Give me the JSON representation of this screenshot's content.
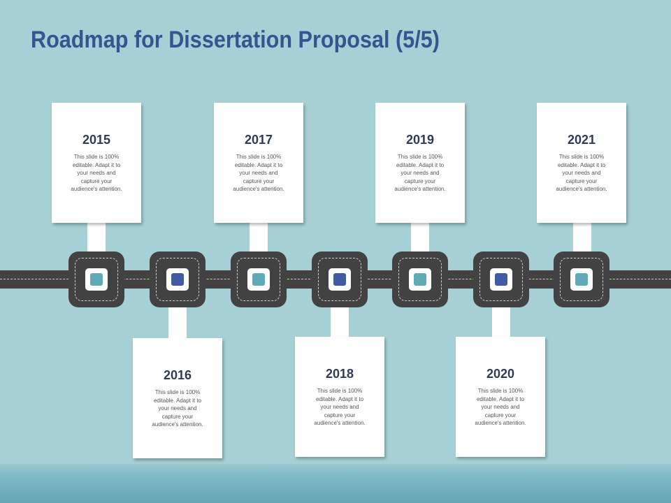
{
  "title": "Roadmap for Dissertation Proposal (5/5)",
  "colors": {
    "background": "#a6d0d5",
    "title": "#34558f",
    "road": "#424242",
    "teal_marker": "#5eabb7",
    "blue_marker": "#4259a4",
    "card": "#ffffff"
  },
  "milestones": [
    {
      "year": "2015",
      "text": "This slide is 100% editable. Adapt it to your needs and capture your audience's attention.",
      "position": "above",
      "marker": "teal"
    },
    {
      "year": "2016",
      "text": "This slide is 100% editable. Adapt it to your needs and capture your audience's attention.",
      "position": "below",
      "marker": "blue"
    },
    {
      "year": "2017",
      "text": "This slide is 100% editable. Adapt it to your needs and capture your audience's attention.",
      "position": "above",
      "marker": "teal"
    },
    {
      "year": "2018",
      "text": "This slide is 100% editable. Adapt it to your needs and capture your audience's attention.",
      "position": "below",
      "marker": "blue"
    },
    {
      "year": "2019",
      "text": "This slide is 100% editable. Adapt it to your needs and capture your audience's attention.",
      "position": "above",
      "marker": "teal"
    },
    {
      "year": "2020",
      "text": "This slide is 100% editable. Adapt it to your needs and capture your audience's attention.",
      "position": "below",
      "marker": "blue"
    },
    {
      "year": "2021",
      "text": "This slide is 100% editable. Adapt it to your needs and capture your audience's attention.",
      "position": "above",
      "marker": "teal"
    }
  ]
}
